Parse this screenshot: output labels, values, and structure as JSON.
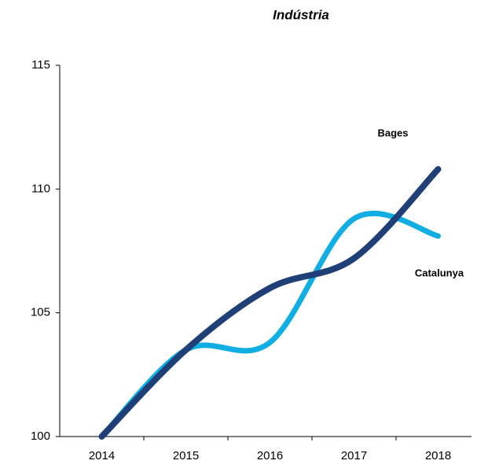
{
  "chart_data": {
    "type": "line",
    "title": "Indústria",
    "categories": [
      "2014",
      "2015",
      "2016",
      "2017",
      "2018"
    ],
    "series": [
      {
        "name": "Bages",
        "color": "#1f3f77",
        "values": [
          100,
          103.5,
          106,
          107.2,
          110.8
        ]
      },
      {
        "name": "Catalunya",
        "color": "#11aee3",
        "values": [
          100,
          103.5,
          103.8,
          108.8,
          108.1
        ]
      }
    ],
    "ylim": [
      100,
      115
    ],
    "yticks": [
      100,
      105,
      110,
      115
    ],
    "grid": false
  }
}
